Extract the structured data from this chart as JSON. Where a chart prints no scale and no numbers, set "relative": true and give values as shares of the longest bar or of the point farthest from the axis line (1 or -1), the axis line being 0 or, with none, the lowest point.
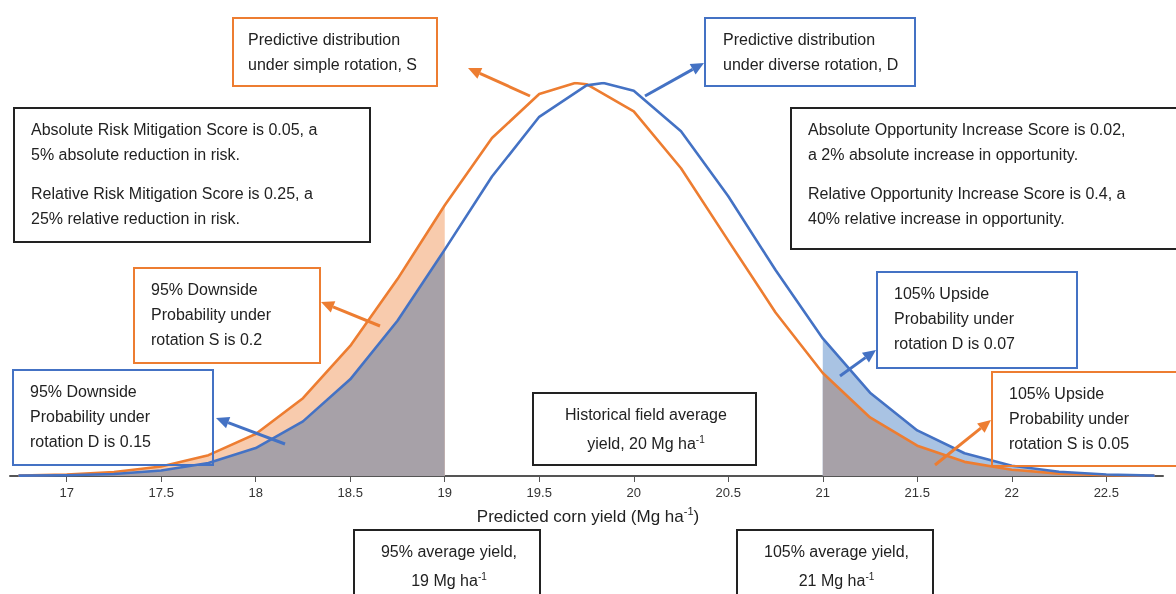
{
  "chart_data": {
    "type": "line",
    "relative": true,
    "xlabel": "Predicted corn yield (Mg ha$^{-1}$)",
    "xlim": [
      16.7,
      22.8
    ],
    "xticks": [
      17,
      17.5,
      18,
      18.5,
      19,
      19.5,
      20,
      20.5,
      21,
      21.5,
      22,
      22.5
    ],
    "grid": false,
    "marker": "none",
    "line_style": "solid",
    "series": [
      {
        "type": "area",
        "color": "#f8cbad",
        "x": [
          16.75,
          17,
          17.25,
          17.5,
          17.75,
          18,
          18.25,
          18.5,
          18.75,
          19
        ],
        "values": [
          0.001,
          0.004,
          0.01,
          0.024,
          0.053,
          0.107,
          0.198,
          0.331,
          0.501,
          0.689
        ]
      },
      {
        "type": "area",
        "color": "#a7a1a8",
        "x": [
          16.75,
          17,
          17.25,
          17.5,
          17.75,
          18,
          18.25,
          18.5,
          18.75,
          19
        ],
        "values": [
          0.001,
          0.002,
          0.005,
          0.014,
          0.033,
          0.071,
          0.139,
          0.246,
          0.395,
          0.576
        ]
      },
      {
        "type": "area",
        "color": "#a9c3e3",
        "x": [
          21,
          21.25,
          21.5,
          21.75,
          22,
          22.25,
          22.5,
          22.75
        ],
        "values": [
          0.35,
          0.212,
          0.116,
          0.058,
          0.026,
          0.011,
          0.004,
          0.001
        ]
      },
      {
        "type": "area",
        "color": "#a7a1a8",
        "x": [
          21,
          21.25,
          21.5,
          21.75,
          22,
          22.25,
          22.5,
          22.75
        ],
        "values": [
          0.262,
          0.149,
          0.077,
          0.036,
          0.016,
          0.006,
          0.002,
          0.001
        ]
      },
      {
        "type": "line",
        "color": "#ed7d31",
        "x": [
          16.75,
          17,
          17.25,
          17.5,
          17.75,
          18,
          18.25,
          18.5,
          18.75,
          19,
          19.25,
          19.5,
          19.69,
          19.75,
          20,
          20.25,
          20.5,
          20.75,
          21,
          21.25,
          21.5,
          21.75,
          22,
          22.25,
          22.5,
          22.75
        ],
        "values": [
          0.001,
          0.004,
          0.01,
          0.024,
          0.053,
          0.107,
          0.198,
          0.331,
          0.501,
          0.689,
          0.86,
          0.972,
          1,
          0.997,
          0.928,
          0.783,
          0.599,
          0.416,
          0.262,
          0.149,
          0.077,
          0.036,
          0.016,
          0.006,
          0.002,
          0.001
        ]
      },
      {
        "type": "line",
        "color": "#4472c4",
        "x": [
          16.75,
          17,
          17.25,
          17.5,
          17.75,
          18,
          18.25,
          18.5,
          18.75,
          19,
          19.25,
          19.5,
          19.75,
          19.84,
          20,
          20.25,
          20.5,
          20.75,
          21,
          21.25,
          21.5,
          21.75,
          22,
          22.25,
          22.5,
          22.75
        ],
        "values": [
          0.001,
          0.002,
          0.005,
          0.014,
          0.033,
          0.071,
          0.139,
          0.246,
          0.395,
          0.576,
          0.762,
          0.914,
          0.994,
          1,
          0.98,
          0.877,
          0.712,
          0.524,
          0.35,
          0.212,
          0.116,
          0.058,
          0.026,
          0.011,
          0.004,
          0.001
        ]
      }
    ],
    "annotations": [
      "Predictive distribution under simple rotation, S",
      "Predictive distribution under diverse rotation, D",
      "Absolute Risk Mitigation Score is 0.05, a 5% absolute reduction in risk.",
      "Relative Risk Mitigation Score is 0.25, a 25% relative reduction in risk.",
      "Absolute Opportunity Increase Score is 0.02, a 2% absolute increase in opportunity.",
      "Relative Opportunity Increase Score is 0.4, a 40% relative increase in opportunity.",
      "95% Downside Probability under rotation S is 0.2",
      "95% Downside Probability under rotation D is 0.15",
      "105% Upside Probability under rotation D is 0.07",
      "105% Upside Probability under rotation S is 0.05",
      "Historical field average yield, 20 Mg ha$^{-1}$",
      "95% average yield, 19 Mg ha$^{-1}$",
      "105% average yield, 21 Mg ha$^{-1}$"
    ]
  }
}
